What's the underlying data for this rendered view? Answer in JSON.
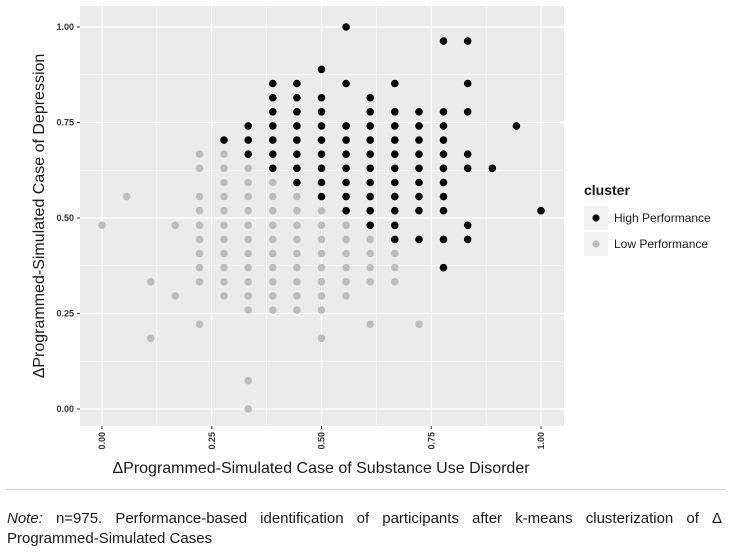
{
  "note": {
    "label": "Note:",
    "text": " n=975. Performance-based identification of participants after k-means clusterization of Δ Programmed-Simulated Cases"
  },
  "colors": {
    "panel_background": "#ebebeb",
    "grid": "#ffffff",
    "high_performance": "#000000",
    "low_performance": "#bdbdbd"
  },
  "chart_data": {
    "type": "scatter",
    "title": "",
    "xlabel": "ΔProgrammed-Simulated Case of Substance Use Disorder",
    "ylabel": "ΔProgrammed-Simulated Case of Depression",
    "xlim": [
      0,
      1
    ],
    "ylim": [
      0,
      1
    ],
    "x_ticks": [
      "0.00",
      "0.25",
      "0.50",
      "0.75",
      "1.00"
    ],
    "y_ticks": [
      "0.00",
      "0.25",
      "0.50",
      "0.75",
      "1.00"
    ],
    "grid": true,
    "legend": {
      "title": "cluster",
      "position": "right",
      "entries": [
        "High Performance",
        "Low Performance"
      ]
    },
    "series": [
      {
        "name": "High Performance",
        "color": "#000000",
        "points": [
          [
            0.278,
            0.704
          ],
          [
            0.333,
            0.741
          ],
          [
            0.333,
            0.704
          ],
          [
            0.333,
            0.667
          ],
          [
            0.389,
            0.852
          ],
          [
            0.389,
            0.815
          ],
          [
            0.389,
            0.778
          ],
          [
            0.389,
            0.741
          ],
          [
            0.389,
            0.704
          ],
          [
            0.389,
            0.667
          ],
          [
            0.389,
            0.63
          ],
          [
            0.444,
            0.852
          ],
          [
            0.444,
            0.815
          ],
          [
            0.444,
            0.778
          ],
          [
            0.444,
            0.741
          ],
          [
            0.444,
            0.704
          ],
          [
            0.444,
            0.667
          ],
          [
            0.444,
            0.63
          ],
          [
            0.444,
            0.593
          ],
          [
            0.5,
            0.889
          ],
          [
            0.5,
            0.815
          ],
          [
            0.5,
            0.778
          ],
          [
            0.5,
            0.741
          ],
          [
            0.5,
            0.704
          ],
          [
            0.5,
            0.667
          ],
          [
            0.5,
            0.63
          ],
          [
            0.5,
            0.593
          ],
          [
            0.5,
            0.556
          ],
          [
            0.556,
            1.0
          ],
          [
            0.556,
            0.852
          ],
          [
            0.556,
            0.741
          ],
          [
            0.556,
            0.704
          ],
          [
            0.556,
            0.667
          ],
          [
            0.556,
            0.63
          ],
          [
            0.556,
            0.593
          ],
          [
            0.556,
            0.556
          ],
          [
            0.556,
            0.519
          ],
          [
            0.611,
            0.815
          ],
          [
            0.611,
            0.778
          ],
          [
            0.611,
            0.741
          ],
          [
            0.611,
            0.704
          ],
          [
            0.611,
            0.667
          ],
          [
            0.611,
            0.63
          ],
          [
            0.611,
            0.593
          ],
          [
            0.611,
            0.556
          ],
          [
            0.611,
            0.519
          ],
          [
            0.611,
            0.481
          ],
          [
            0.667,
            0.852
          ],
          [
            0.667,
            0.778
          ],
          [
            0.667,
            0.741
          ],
          [
            0.667,
            0.704
          ],
          [
            0.667,
            0.667
          ],
          [
            0.667,
            0.63
          ],
          [
            0.667,
            0.593
          ],
          [
            0.667,
            0.556
          ],
          [
            0.667,
            0.519
          ],
          [
            0.667,
            0.481
          ],
          [
            0.667,
            0.444
          ],
          [
            0.722,
            0.778
          ],
          [
            0.722,
            0.741
          ],
          [
            0.722,
            0.704
          ],
          [
            0.722,
            0.667
          ],
          [
            0.722,
            0.63
          ],
          [
            0.722,
            0.593
          ],
          [
            0.722,
            0.556
          ],
          [
            0.722,
            0.519
          ],
          [
            0.722,
            0.444
          ],
          [
            0.778,
            0.963
          ],
          [
            0.778,
            0.778
          ],
          [
            0.778,
            0.741
          ],
          [
            0.778,
            0.704
          ],
          [
            0.778,
            0.667
          ],
          [
            0.778,
            0.63
          ],
          [
            0.778,
            0.593
          ],
          [
            0.778,
            0.556
          ],
          [
            0.778,
            0.519
          ],
          [
            0.778,
            0.444
          ],
          [
            0.778,
            0.37
          ],
          [
            0.833,
            0.963
          ],
          [
            0.833,
            0.852
          ],
          [
            0.833,
            0.778
          ],
          [
            0.833,
            0.667
          ],
          [
            0.833,
            0.63
          ],
          [
            0.833,
            0.481
          ],
          [
            0.833,
            0.444
          ],
          [
            0.889,
            0.63
          ],
          [
            0.944,
            0.741
          ],
          [
            1.0,
            0.519
          ]
        ]
      },
      {
        "name": "Low Performance",
        "color": "#bdbdbd",
        "points": [
          [
            0.0,
            0.481
          ],
          [
            0.056,
            0.556
          ],
          [
            0.111,
            0.333
          ],
          [
            0.111,
            0.185
          ],
          [
            0.167,
            0.481
          ],
          [
            0.167,
            0.296
          ],
          [
            0.222,
            0.667
          ],
          [
            0.222,
            0.63
          ],
          [
            0.222,
            0.556
          ],
          [
            0.222,
            0.519
          ],
          [
            0.222,
            0.481
          ],
          [
            0.222,
            0.444
          ],
          [
            0.222,
            0.407
          ],
          [
            0.222,
            0.37
          ],
          [
            0.222,
            0.333
          ],
          [
            0.222,
            0.222
          ],
          [
            0.278,
            0.667
          ],
          [
            0.278,
            0.63
          ],
          [
            0.278,
            0.593
          ],
          [
            0.278,
            0.556
          ],
          [
            0.278,
            0.519
          ],
          [
            0.278,
            0.481
          ],
          [
            0.278,
            0.444
          ],
          [
            0.278,
            0.407
          ],
          [
            0.278,
            0.37
          ],
          [
            0.278,
            0.333
          ],
          [
            0.278,
            0.296
          ],
          [
            0.333,
            0.63
          ],
          [
            0.333,
            0.593
          ],
          [
            0.333,
            0.556
          ],
          [
            0.333,
            0.519
          ],
          [
            0.333,
            0.481
          ],
          [
            0.333,
            0.444
          ],
          [
            0.333,
            0.407
          ],
          [
            0.333,
            0.37
          ],
          [
            0.333,
            0.333
          ],
          [
            0.333,
            0.296
          ],
          [
            0.333,
            0.259
          ],
          [
            0.333,
            0.074
          ],
          [
            0.333,
            0.0
          ],
          [
            0.389,
            0.593
          ],
          [
            0.389,
            0.556
          ],
          [
            0.389,
            0.519
          ],
          [
            0.389,
            0.481
          ],
          [
            0.389,
            0.444
          ],
          [
            0.389,
            0.407
          ],
          [
            0.389,
            0.37
          ],
          [
            0.389,
            0.333
          ],
          [
            0.389,
            0.296
          ],
          [
            0.389,
            0.259
          ],
          [
            0.444,
            0.556
          ],
          [
            0.444,
            0.519
          ],
          [
            0.444,
            0.481
          ],
          [
            0.444,
            0.444
          ],
          [
            0.444,
            0.407
          ],
          [
            0.444,
            0.37
          ],
          [
            0.444,
            0.333
          ],
          [
            0.444,
            0.296
          ],
          [
            0.444,
            0.259
          ],
          [
            0.5,
            0.519
          ],
          [
            0.5,
            0.481
          ],
          [
            0.5,
            0.444
          ],
          [
            0.5,
            0.407
          ],
          [
            0.5,
            0.37
          ],
          [
            0.5,
            0.333
          ],
          [
            0.5,
            0.296
          ],
          [
            0.5,
            0.259
          ],
          [
            0.5,
            0.185
          ],
          [
            0.556,
            0.481
          ],
          [
            0.556,
            0.444
          ],
          [
            0.556,
            0.407
          ],
          [
            0.556,
            0.37
          ],
          [
            0.556,
            0.333
          ],
          [
            0.556,
            0.296
          ],
          [
            0.611,
            0.444
          ],
          [
            0.611,
            0.407
          ],
          [
            0.611,
            0.37
          ],
          [
            0.611,
            0.333
          ],
          [
            0.611,
            0.222
          ],
          [
            0.667,
            0.407
          ],
          [
            0.667,
            0.37
          ],
          [
            0.667,
            0.333
          ],
          [
            0.722,
            0.222
          ]
        ]
      }
    ]
  }
}
